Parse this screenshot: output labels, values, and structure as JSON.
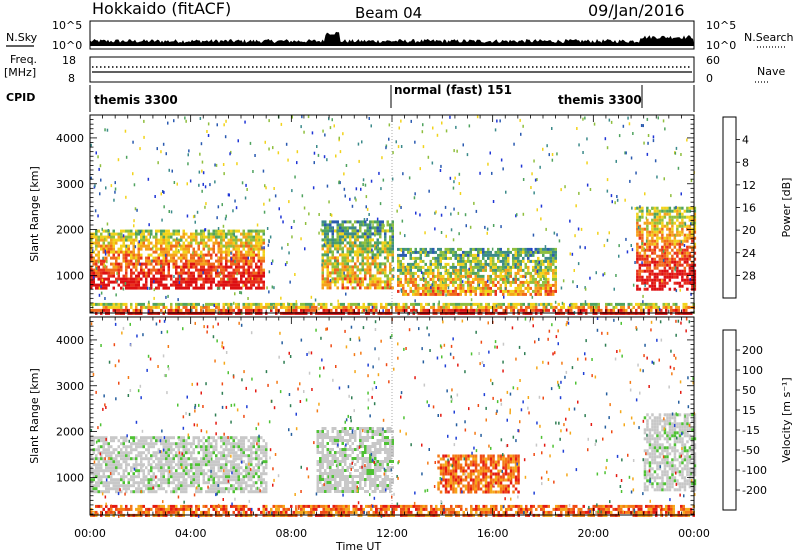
{
  "header": {
    "station": "Hokkaido (fitACF)",
    "beam": "Beam 04",
    "date": "09/Jan/2016"
  },
  "left_labels": {
    "nsky": "N.Sky",
    "freq": "Freq.",
    "freq_unit": "[MHz]",
    "cpid": "CPID"
  },
  "right_labels": {
    "nsearch": "N.Search",
    "nave": "Nave"
  },
  "noise_axis": {
    "left_ticks": [
      "10^5",
      "10^0"
    ],
    "right_ticks": [
      "10^5",
      "10^0"
    ]
  },
  "freq_axis": {
    "left_ticks": [
      "18",
      "8"
    ],
    "right_ticks": [
      "60",
      "0"
    ]
  },
  "cpid_segments": [
    {
      "label": "themis 3300",
      "start": 0,
      "end": 12
    },
    {
      "label": "normal (fast) 151",
      "start": 12,
      "end": 21.8
    },
    {
      "label": "themis 3300",
      "start": 21.8,
      "end": 24
    }
  ],
  "colors": {
    "power_scale": [
      "#1f35d6",
      "#2a5ab0",
      "#3b8a8a",
      "#4fa35f",
      "#8fbf3e",
      "#f2d31b",
      "#f5a21b",
      "#f06a1a",
      "#e8301c",
      "#dd0f12"
    ],
    "velocity_scale": [
      "#1f3fd6",
      "#255e9e",
      "#2f7e53",
      "#4ec233",
      "#c8c8c8",
      "#f5a81a",
      "#f47a16",
      "#ef4a14",
      "#e41a12"
    ]
  },
  "chart_data": [
    {
      "type": "heatmap",
      "title": "",
      "xlabel": "Time UT",
      "ylabel": "Slant Range [km]",
      "x_ticks": [
        "00:00",
        "04:00",
        "08:00",
        "12:00",
        "16:00",
        "20:00",
        "00:00"
      ],
      "xlim": [
        0,
        24
      ],
      "ylim": [
        180,
        4500
      ],
      "y_ticks": [
        1000,
        2000,
        3000,
        4000
      ],
      "colorbar": {
        "label": "Power [dB]",
        "ticks": [
          4,
          8,
          12,
          16,
          20,
          24,
          28
        ],
        "range": [
          0,
          30
        ]
      },
      "regions": [
        {
          "hours": [
            0,
            6.9
          ],
          "range_km": [
            700,
            2000
          ],
          "level": "high"
        },
        {
          "hours": [
            9.2,
            12
          ],
          "range_km": [
            700,
            2200
          ],
          "level": "medium"
        },
        {
          "hours": [
            12.2,
            18.5
          ],
          "range_km": [
            600,
            1600
          ],
          "level": "medium"
        },
        {
          "hours": [
            21.7,
            24
          ],
          "range_km": [
            700,
            2500
          ],
          "level": "high"
        },
        {
          "hours": [
            0,
            24
          ],
          "range_km": [
            180,
            400
          ],
          "level": "high"
        }
      ]
    },
    {
      "type": "heatmap",
      "title": "",
      "xlabel": "Time UT",
      "ylabel": "Slant Range [km]",
      "x_ticks": [
        "00:00",
        "04:00",
        "08:00",
        "12:00",
        "16:00",
        "20:00",
        "00:00"
      ],
      "xlim": [
        0,
        24
      ],
      "ylim": [
        180,
        4500
      ],
      "y_ticks": [
        1000,
        2000,
        3000,
        4000
      ],
      "colorbar": {
        "label": "Velocity [m s⁻¹]",
        "ticks": [
          200,
          100,
          50,
          15,
          -15,
          -50,
          -100,
          -200
        ],
        "range": [
          -200,
          200
        ]
      },
      "regions": [
        {
          "hours": [
            0,
            7
          ],
          "range_km": [
            700,
            1900
          ],
          "level": "ground"
        },
        {
          "hours": [
            9,
            12
          ],
          "range_km": [
            700,
            2100
          ],
          "level": "ground"
        },
        {
          "hours": [
            13.8,
            17
          ],
          "range_km": [
            700,
            1500
          ],
          "level": "negative"
        },
        {
          "hours": [
            22,
            24
          ],
          "range_km": [
            700,
            2400
          ],
          "level": "ground"
        },
        {
          "hours": [
            0,
            24
          ],
          "range_km": [
            180,
            400
          ],
          "level": "negative"
        }
      ]
    }
  ]
}
